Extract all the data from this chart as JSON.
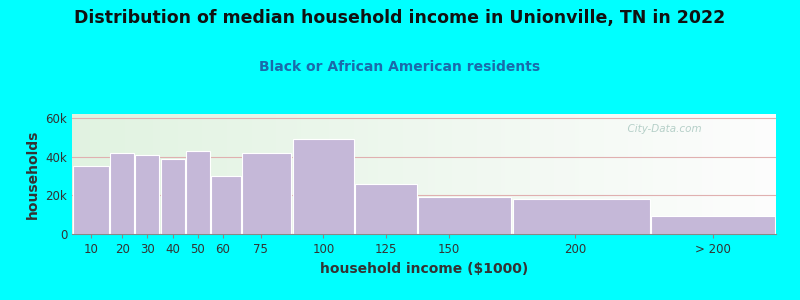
{
  "title": "Distribution of median household income in Unionville, TN in 2022",
  "subtitle": "Black or African American residents",
  "xlabel": "household income ($1000)",
  "ylabel": "households",
  "background_color": "#00FFFF",
  "bar_color": "#c5b8d8",
  "bar_edge_color": "#ffffff",
  "categories": [
    "10",
    "20",
    "30",
    "40",
    "50",
    "60",
    "75",
    "100",
    "125",
    "150",
    "200",
    "> 200"
  ],
  "bin_edges": [
    0,
    15,
    25,
    35,
    45,
    55,
    67.5,
    87.5,
    112.5,
    137.5,
    175,
    230,
    280
  ],
  "values": [
    35000,
    42000,
    41000,
    39000,
    43000,
    30000,
    42000,
    49000,
    26000,
    19000,
    18000,
    9500
  ],
  "tick_positions": [
    7.5,
    20,
    30,
    40,
    50,
    60,
    75,
    100,
    125,
    150,
    200,
    255
  ],
  "ylim": [
    0,
    62000
  ],
  "ytick_labels": [
    "0",
    "20k",
    "40k",
    "60k"
  ],
  "ytick_values": [
    0,
    20000,
    40000,
    60000
  ],
  "watermark": "  City-Data.com",
  "title_fontsize": 12.5,
  "subtitle_fontsize": 10,
  "label_fontsize": 10,
  "tick_fontsize": 8.5,
  "grid_color": "#e0b0b0",
  "subtitle_color": "#1a6aaa",
  "title_color": "#111111"
}
